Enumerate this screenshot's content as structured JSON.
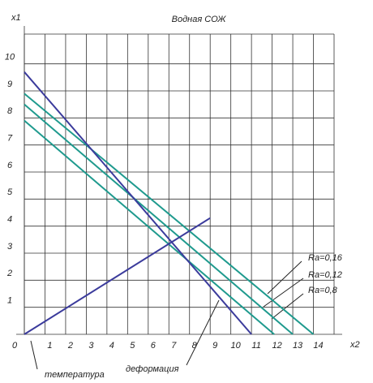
{
  "chart_data": {
    "type": "line",
    "title": "Водная СОЖ",
    "x_label": "x2",
    "y_label": "x1",
    "xlim": [
      0,
      15
    ],
    "ylim": [
      0,
      11.1
    ],
    "xticks": [
      0,
      1,
      2,
      3,
      4,
      5,
      6,
      7,
      8,
      9,
      10,
      11,
      12,
      13,
      14
    ],
    "yticks": [
      1,
      2,
      3,
      4,
      5,
      6,
      7,
      8,
      9,
      10
    ],
    "grid": true,
    "series": [
      {
        "name": "Ra=0,16",
        "color": "#1f9a8e",
        "x": [
          0,
          14
        ],
        "values": [
          8.9,
          0
        ]
      },
      {
        "name": "Ra=0,12",
        "color": "#1f9a8e",
        "x": [
          0,
          13
        ],
        "values": [
          8.5,
          0
        ]
      },
      {
        "name": "Ra=0,8",
        "color": "#1f9a8e",
        "x": [
          0,
          12.1
        ],
        "values": [
          7.9,
          0
        ]
      },
      {
        "name": "температура",
        "color": "#3b3b9c",
        "x": [
          0,
          9
        ],
        "values": [
          0,
          4.3
        ]
      },
      {
        "name": "деформация",
        "color": "#3b3b9c",
        "x": [
          0,
          11
        ],
        "values": [
          9.7,
          0
        ]
      }
    ]
  }
}
